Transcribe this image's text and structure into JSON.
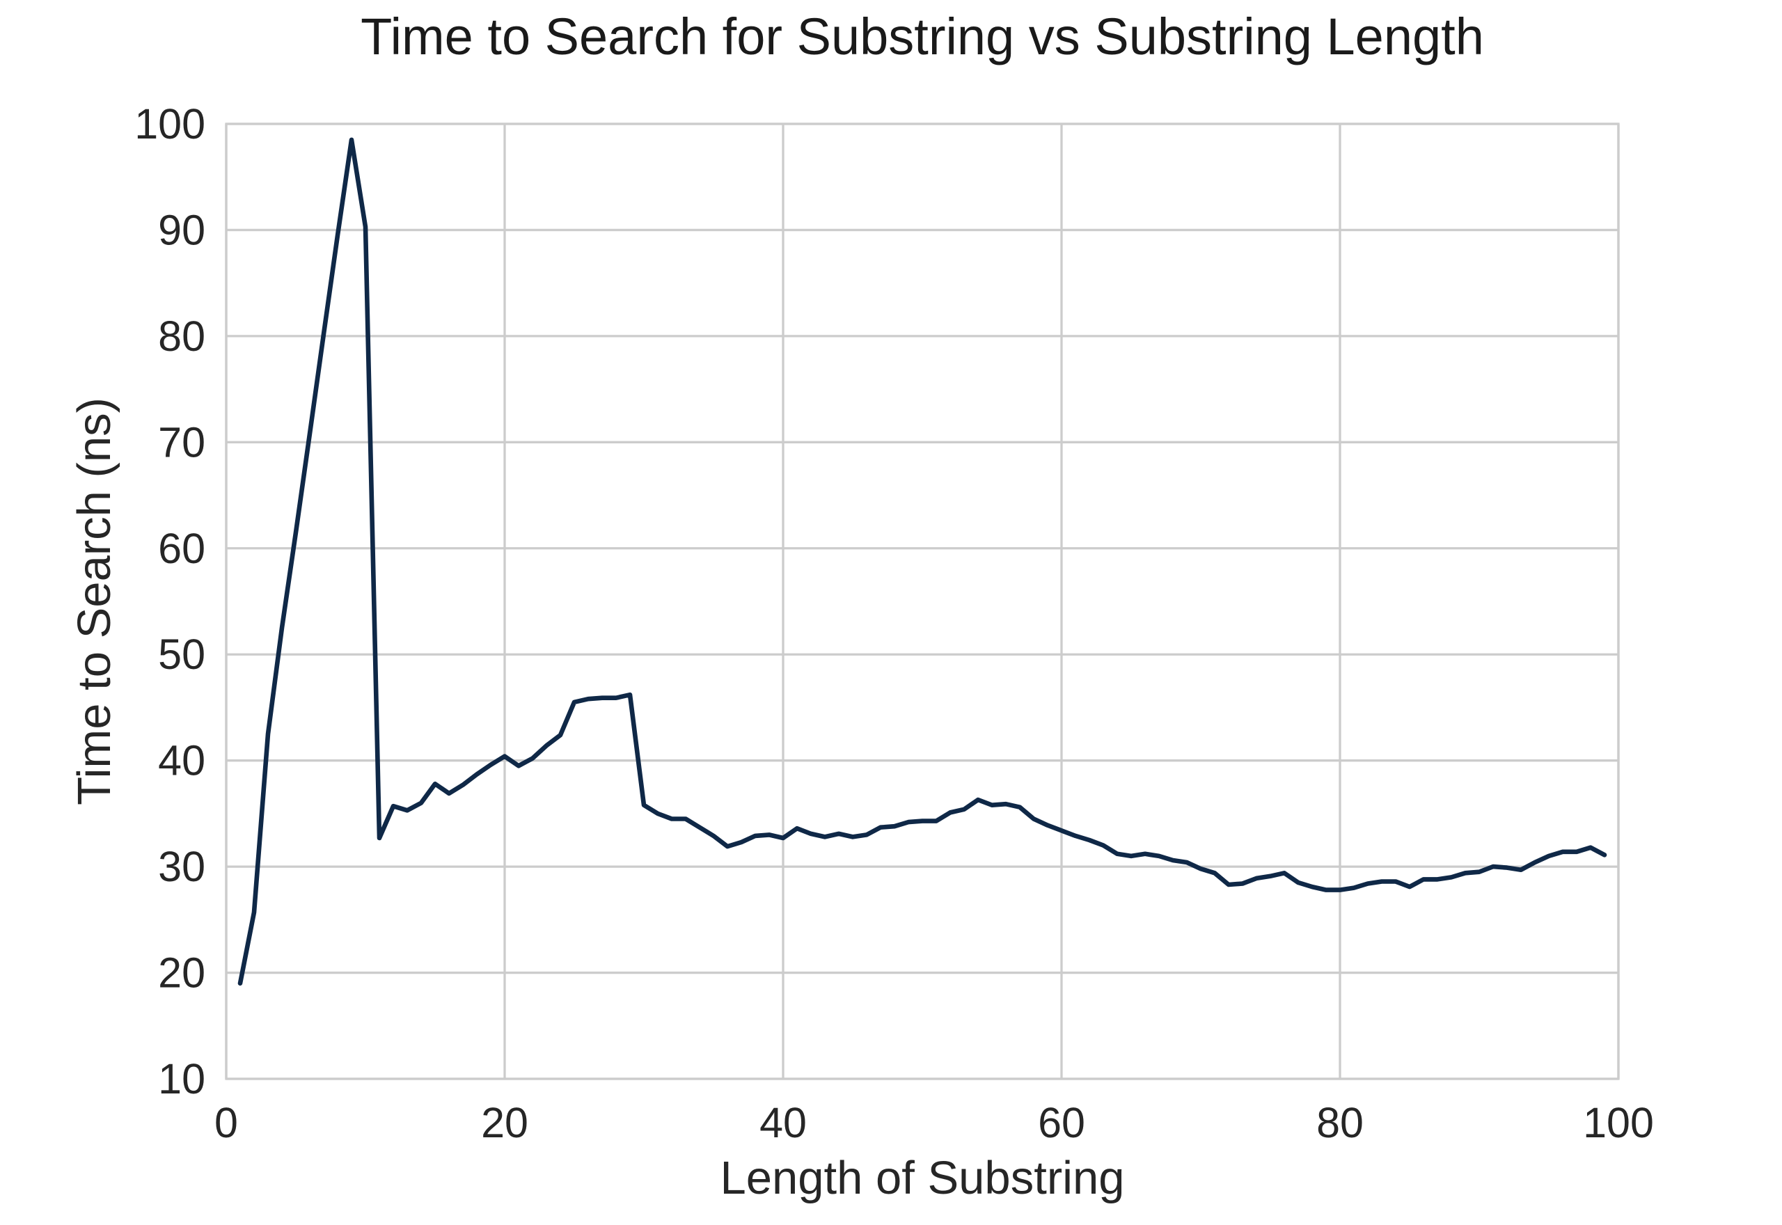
{
  "chart_data": {
    "type": "line",
    "title": "Time to Search for Substring vs Substring Length",
    "xlabel": "Length of Substring",
    "ylabel": "Time to Search (ns)",
    "xlim": [
      0,
      100
    ],
    "ylim": [
      10,
      100
    ],
    "xticks": [
      "0",
      "20",
      "40",
      "60",
      "80",
      "100"
    ],
    "yticks": [
      "10",
      "20",
      "30",
      "40",
      "50",
      "60",
      "70",
      "80",
      "90",
      "100"
    ],
    "grid": true,
    "legend": "none",
    "series": [
      {
        "color": "#0f2847",
        "x": [
          1,
          2,
          3,
          4,
          5,
          6,
          7,
          8,
          9,
          10,
          11,
          12,
          13,
          14,
          15,
          16,
          17,
          18,
          19,
          20,
          21,
          22,
          23,
          24,
          25,
          26,
          27,
          28,
          29,
          30,
          31,
          32,
          33,
          34,
          35,
          36,
          37,
          38,
          39,
          40,
          41,
          42,
          43,
          44,
          45,
          46,
          47,
          48,
          49,
          50,
          51,
          52,
          53,
          54,
          55,
          56,
          57,
          58,
          59,
          60,
          61,
          62,
          63,
          64,
          65,
          66,
          67,
          68,
          69,
          70,
          71,
          72,
          73,
          74,
          75,
          76,
          77,
          78,
          79,
          80,
          81,
          82,
          83,
          84,
          85,
          86,
          87,
          88,
          89,
          90,
          91,
          92,
          93,
          94,
          95,
          96,
          97,
          98,
          99
        ],
        "y": [
          19.0,
          25.7,
          42.5,
          52.5,
          61.5,
          70.8,
          80.2,
          89.5,
          98.5,
          90.3,
          32.7,
          35.7,
          35.3,
          36.0,
          37.8,
          36.9,
          37.7,
          38.7,
          39.6,
          40.4,
          39.5,
          40.2,
          41.4,
          42.4,
          45.5,
          45.8,
          45.9,
          45.9,
          46.2,
          35.8,
          35.0,
          34.5,
          34.5,
          33.7,
          32.9,
          31.9,
          32.3,
          32.9,
          33.0,
          32.7,
          33.6,
          33.1,
          32.8,
          33.1,
          32.8,
          33.0,
          33.7,
          33.8,
          34.2,
          34.3,
          34.3,
          35.1,
          35.4,
          36.3,
          35.8,
          35.9,
          35.6,
          34.5,
          33.9,
          33.4,
          32.9,
          32.5,
          32.0,
          31.2,
          31.0,
          31.2,
          31.0,
          30.6,
          30.4,
          29.8,
          29.4,
          28.3,
          28.4,
          28.9,
          29.1,
          29.4,
          28.5,
          28.1,
          27.8,
          27.8,
          28.0,
          28.4,
          28.6,
          28.6,
          28.1,
          28.8,
          28.8,
          29.0,
          29.4,
          29.5,
          30.0,
          29.9,
          29.7,
          30.4,
          31.0,
          31.4,
          31.4,
          31.8,
          31.1
        ]
      }
    ]
  }
}
